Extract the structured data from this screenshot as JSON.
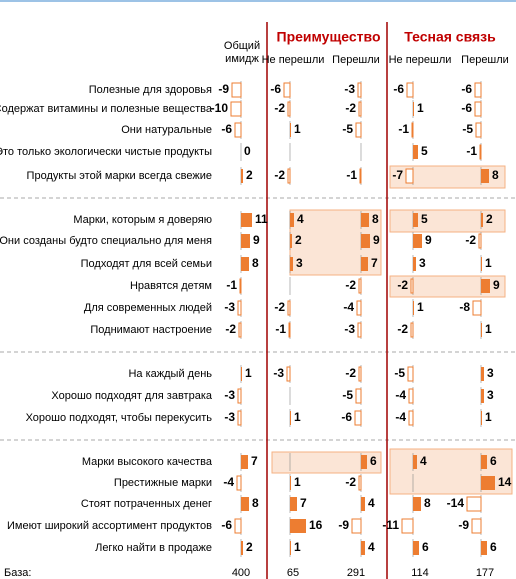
{
  "chart_data": {
    "type": "bar",
    "groups": [
      {
        "title": "Преимущество",
        "columns": [
          1,
          2
        ]
      },
      {
        "title": "Тесная связь",
        "columns": [
          3,
          4
        ]
      }
    ],
    "columns": [
      {
        "name": "Общий имидж",
        "base": 400
      },
      {
        "name": "Не перешли",
        "base": 65
      },
      {
        "name": "Перешли",
        "base": 291
      },
      {
        "name": "Не перешли",
        "base": 114
      },
      {
        "name": "Перешли",
        "base": 177
      }
    ],
    "base_label": "База:",
    "row_groups": [
      [
        {
          "label": "Полезные для здоровья",
          "values": [
            -9,
            -6,
            -3,
            -6,
            -6
          ]
        },
        {
          "label": "Содержат витамины и полезные вещества",
          "values": [
            -10,
            -2,
            -2,
            1,
            -6
          ]
        },
        {
          "label": "Они натуральные",
          "values": [
            -6,
            1,
            -5,
            -1,
            -5
          ]
        },
        {
          "label": "Это только экологически чистые продукты",
          "values": [
            0,
            null,
            null,
            5,
            -1
          ]
        },
        {
          "label": "Продукты этой марки всегда свежие",
          "values": [
            2,
            -2,
            -1,
            -7,
            8
          ]
        }
      ],
      [
        {
          "label": "Марки, которым я доверяю",
          "values": [
            11,
            4,
            8,
            5,
            2
          ]
        },
        {
          "label": "Они созданы будто специально для меня",
          "values": [
            9,
            2,
            9,
            9,
            -2
          ]
        },
        {
          "label": "Подходят для всей семьи",
          "values": [
            8,
            3,
            7,
            3,
            1
          ]
        },
        {
          "label": "Нравятся детям",
          "values": [
            -1,
            null,
            -2,
            -2,
            9
          ]
        },
        {
          "label": "Для современных людей",
          "values": [
            -3,
            -2,
            -4,
            1,
            -8
          ]
        },
        {
          "label": "Поднимают настроение",
          "values": [
            -2,
            -1,
            -3,
            -2,
            1
          ]
        }
      ],
      [
        {
          "label": "На каждый день",
          "values": [
            1,
            -3,
            -2,
            -5,
            3
          ]
        },
        {
          "label": "Хорошо подходят для завтрака",
          "values": [
            -3,
            null,
            -5,
            -4,
            3
          ]
        },
        {
          "label": "Хорошо подходят, чтобы перекусить",
          "values": [
            -3,
            1,
            -6,
            -4,
            1
          ]
        }
      ],
      [
        {
          "label": "Марки высокого качества",
          "values": [
            7,
            null,
            6,
            4,
            6
          ]
        },
        {
          "label": "Престижные марки",
          "values": [
            -4,
            1,
            -2,
            null,
            14
          ]
        },
        {
          "label": "Стоят потраченных денег",
          "values": [
            8,
            7,
            4,
            8,
            -14
          ]
        },
        {
          "label": "Имеют широкий ассортимент продуктов",
          "values": [
            -6,
            16,
            -9,
            -11,
            -9
          ]
        },
        {
          "label": "Легко найти в продаже",
          "values": [
            2,
            1,
            4,
            6,
            6
          ]
        }
      ]
    ],
    "color": "#ed7d31"
  }
}
